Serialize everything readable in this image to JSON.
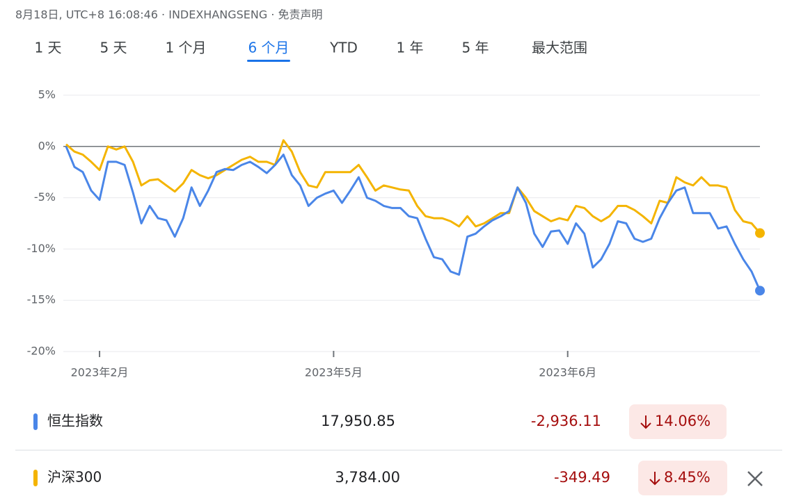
{
  "header": {
    "text": "8月18日, UTC+8 16:08:46 · INDEXHANGSENG · 免责声明"
  },
  "tabs": [
    "1 天",
    "5 天",
    "1 个月",
    "6 个月",
    "YTD",
    "1 年",
    "5 年",
    "最大范围"
  ],
  "selected_tab": 3,
  "chart_data": {
    "type": "line",
    "categories": [
      null,
      null,
      null,
      null,
      "2023年2月",
      null,
      null,
      null,
      null,
      null,
      null,
      null,
      null,
      null,
      null,
      null,
      null,
      null,
      null,
      null,
      null,
      null,
      null,
      null,
      null,
      null,
      null,
      null,
      null,
      null,
      null,
      null,
      "2023年5月",
      null,
      null,
      null,
      null,
      null,
      null,
      null,
      null,
      null,
      null,
      null,
      null,
      null,
      null,
      null,
      null,
      null,
      null,
      null,
      null,
      null,
      null,
      null,
      null,
      null,
      null,
      null,
      "2023年6月",
      null,
      null,
      null,
      null,
      null,
      null,
      null,
      null,
      null,
      null,
      null,
      null,
      null,
      null,
      null,
      null,
      null,
      null,
      null,
      null,
      null,
      null,
      null
    ],
    "series": [
      {
        "name": "恒生指数",
        "color": "#4a86e8",
        "values": [
          0,
          -2,
          -2.5,
          -4.3,
          -5.2,
          -1.5,
          -1.5,
          -1.8,
          -4.5,
          -7.5,
          -5.8,
          -7,
          -7.2,
          -8.8,
          -7,
          -4,
          -5.8,
          -4.3,
          -2.5,
          -2.2,
          -2.3,
          -1.8,
          -1.5,
          -2,
          -2.6,
          -1.8,
          -0.8,
          -2.8,
          -3.8,
          -5.8,
          -5,
          -4.6,
          -4.3,
          -5.5,
          -4.3,
          -3,
          -5,
          -5.3,
          -5.8,
          -6,
          -6,
          -6.8,
          -7,
          -9,
          -10.8,
          -11,
          -12.2,
          -12.5,
          -8.8,
          -8.5,
          -7.8,
          -7.2,
          -6.8,
          -6.3,
          -4,
          -5.5,
          -8.5,
          -9.8,
          -8.3,
          -8.2,
          -9.5,
          -7.5,
          -8.5,
          -11.8,
          -11,
          -9.5,
          -7.3,
          -7.5,
          -9,
          -9.3,
          -9,
          -7,
          -5.5,
          -4.3,
          -4,
          -6.5,
          -6.5,
          -6.5,
          -8,
          -7.8,
          -9.5,
          -11,
          -12.2,
          -14.06
        ]
      },
      {
        "name": "沪深300",
        "color": "#f4b400",
        "values": [
          0.2,
          -0.5,
          -0.8,
          -1.5,
          -2.3,
          0,
          -0.3,
          0,
          -1.5,
          -3.8,
          -3.3,
          -3.2,
          -3.8,
          -4.4,
          -3.6,
          -2.3,
          -2.8,
          -3.1,
          -2.8,
          -2.3,
          -1.8,
          -1.3,
          -1,
          -1.5,
          -1.5,
          -1.8,
          0.6,
          -0.5,
          -2.5,
          -3.8,
          -4,
          -2.5,
          -2.5,
          -2.5,
          -2.5,
          -1.8,
          -3,
          -4.3,
          -3.8,
          -4,
          -4.2,
          -4.3,
          -5.8,
          -6.8,
          -7,
          -7,
          -7.3,
          -7.8,
          -6.8,
          -7.8,
          -7.5,
          -7,
          -6.5,
          -6.5,
          -4,
          -5,
          -6.3,
          -6.8,
          -7.3,
          -7,
          -7.2,
          -5.8,
          -6,
          -6.8,
          -7.3,
          -6.8,
          -5.8,
          -5.8,
          -6.2,
          -6.8,
          -7.5,
          -5.3,
          -5.5,
          -3,
          -3.5,
          -3.8,
          -3,
          -3.8,
          -3.8,
          -4,
          -6.2,
          -7.3,
          -7.5,
          -8.45
        ]
      }
    ],
    "ylim": [
      -20,
      5
    ],
    "yticks": [
      {
        "value": 5,
        "label": "5%"
      },
      {
        "value": 0,
        "label": "0%"
      },
      {
        "value": -5,
        "label": "-5%"
      },
      {
        "value": -10,
        "label": "-10%"
      },
      {
        "value": -15,
        "label": "-15%"
      },
      {
        "value": -20,
        "label": "-20%"
      }
    ],
    "grid": true
  },
  "quotes": [
    {
      "price": "17,950.85",
      "change": "-2,936.11",
      "percent": "14.06%"
    },
    {
      "price": "3,784.00",
      "change": "-349.49",
      "percent": "8.45%"
    }
  ]
}
